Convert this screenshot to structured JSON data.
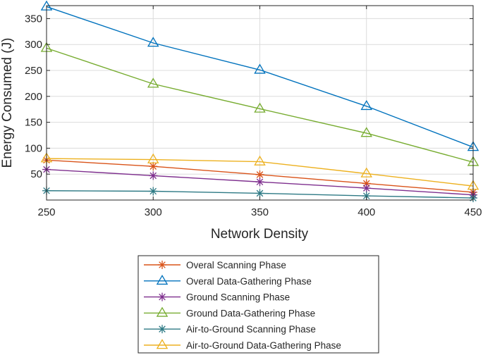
{
  "chart_data": {
    "type": "line",
    "title": "",
    "xlabel": "Network Density",
    "ylabel": "Energy Consumed (J)",
    "x": [
      250,
      300,
      350,
      400,
      450
    ],
    "xticks": [
      "250",
      "300",
      "350",
      "400",
      "450"
    ],
    "xlim": [
      250,
      450
    ],
    "yticks": [
      "50",
      "100",
      "150",
      "200",
      "250",
      "300",
      "350"
    ],
    "ytick_values": [
      50,
      100,
      150,
      200,
      250,
      300,
      350
    ],
    "ylim": [
      0,
      375
    ],
    "grid": true,
    "legend_position": "bottom-center (below chart)",
    "series": [
      {
        "name": "Overal Scanning Phase",
        "marker": "asterisk",
        "color": "#D95319",
        "values": [
          77,
          65,
          49,
          32,
          15
        ]
      },
      {
        "name": "Overal Data-Gathering Phase",
        "marker": "triangle",
        "color": "#0072BD",
        "values": [
          373,
          303,
          251,
          181,
          102
        ]
      },
      {
        "name": "Ground Scanning Phase",
        "marker": "asterisk",
        "color": "#7E2F8E",
        "values": [
          59,
          47,
          35,
          23,
          10
        ]
      },
      {
        "name": "Ground Data-Gathering Phase",
        "marker": "triangle",
        "color": "#77AC30",
        "values": [
          293,
          224,
          176,
          129,
          73
        ]
      },
      {
        "name": "Air-to-Ground Scanning Phase",
        "marker": "asterisk",
        "color": "#2E7A85",
        "values": [
          18,
          17,
          13,
          8,
          4
        ]
      },
      {
        "name": "Air-to-Ground Data-Gathering Phase",
        "marker": "triangle",
        "color": "#EDB120",
        "values": [
          80,
          78,
          74,
          51,
          27
        ]
      }
    ]
  }
}
